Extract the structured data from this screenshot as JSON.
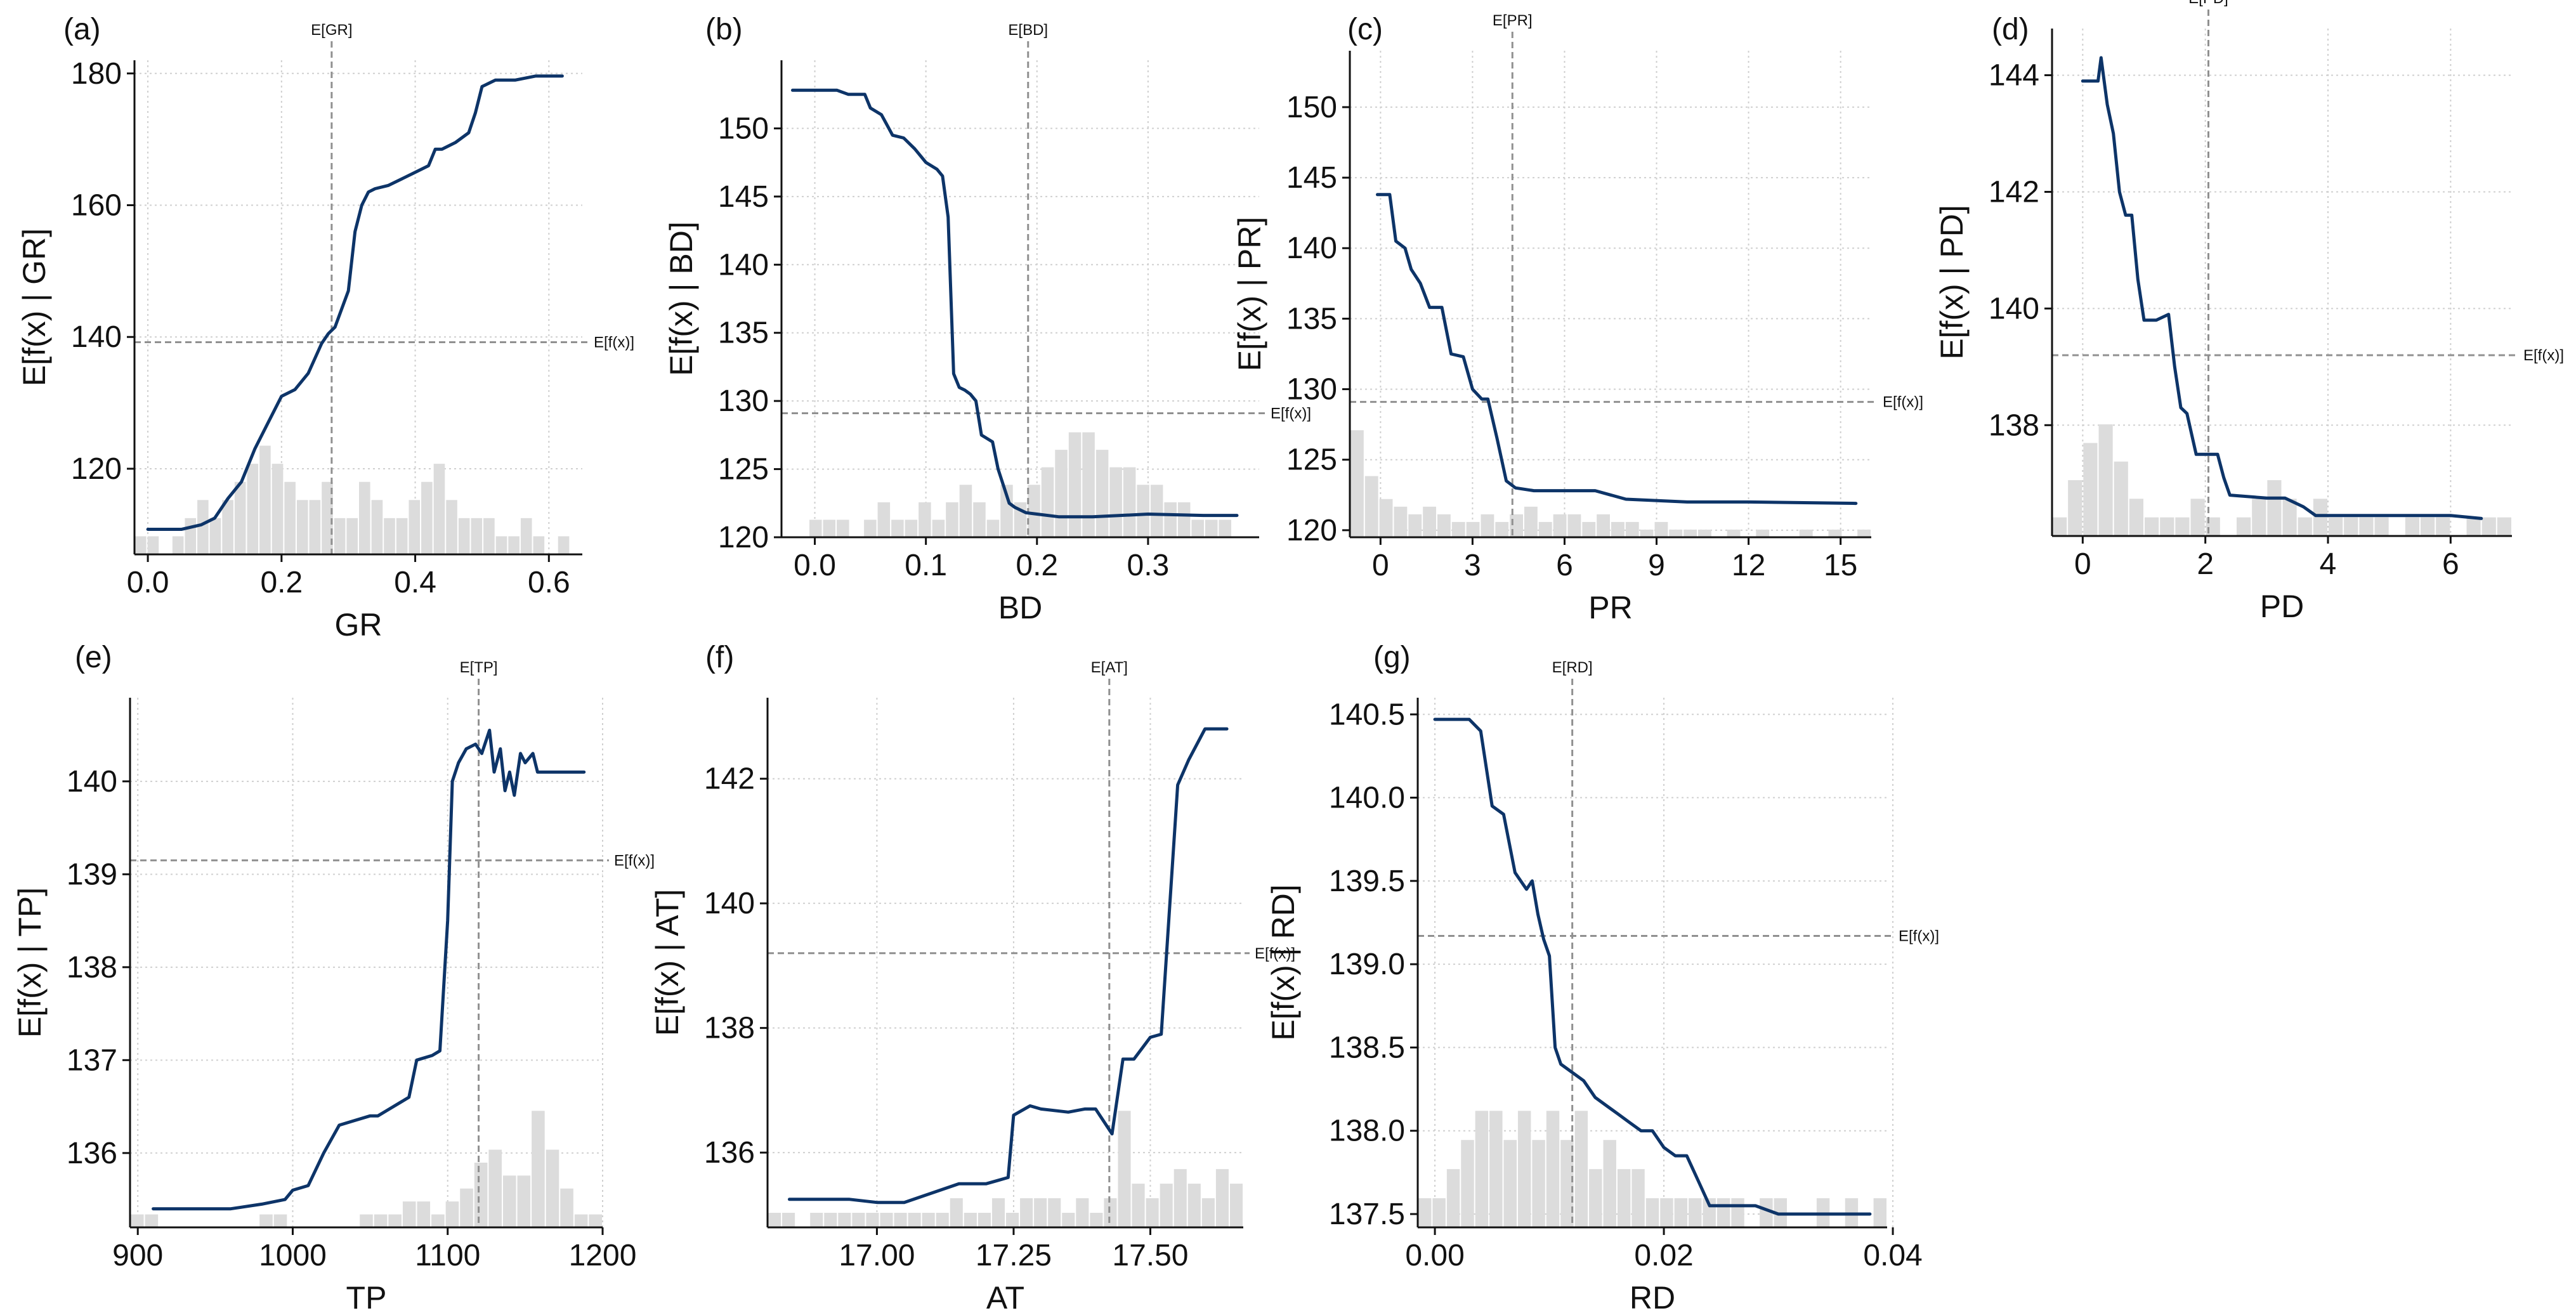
{
  "colors": {
    "line": "#0d3468",
    "hist": "#dcdcdc",
    "grid": "#d0d0d0",
    "ref": "#909090",
    "axis": "#111111",
    "text": "#111111"
  },
  "chart_data": [
    {
      "type": "line",
      "panel": "(a)",
      "feature": "GR",
      "xlabel": "GR",
      "ylabel": "E[f(x) | GR]",
      "xlim": [
        -0.02,
        0.65
      ],
      "ylim": [
        107,
        182
      ],
      "xticks": [
        0.0,
        0.2,
        0.4,
        0.6
      ],
      "xtick_labels": [
        "0.0",
        "0.2",
        "0.4",
        "0.6"
      ],
      "yticks": [
        120,
        140,
        160,
        180
      ],
      "ytick_labels": [
        "120",
        "140",
        "160",
        "180"
      ],
      "expected_x": 0.275,
      "expected_x_label": "E[GR]",
      "expected_y": 139.2,
      "expected_y_label": "E[f(x)]",
      "x": [
        0.0,
        0.05,
        0.08,
        0.1,
        0.12,
        0.14,
        0.16,
        0.18,
        0.2,
        0.22,
        0.24,
        0.26,
        0.27,
        0.28,
        0.3,
        0.31,
        0.32,
        0.33,
        0.34,
        0.36,
        0.38,
        0.4,
        0.42,
        0.43,
        0.44,
        0.46,
        0.48,
        0.49,
        0.5,
        0.52,
        0.55,
        0.58,
        0.62
      ],
      "y": [
        110.8,
        110.8,
        111.5,
        112.5,
        115.5,
        118,
        123,
        127,
        131,
        132,
        134.5,
        139,
        140.5,
        141.5,
        147,
        156,
        160,
        162,
        162.5,
        163,
        164,
        165,
        166,
        168.5,
        168.5,
        169.5,
        171,
        174,
        178,
        179,
        179,
        179.6,
        179.6
      ],
      "hist_counts": [
        1,
        1,
        0,
        1,
        2,
        3,
        2,
        3,
        4,
        5,
        6,
        5,
        4,
        3,
        3,
        4,
        2,
        2,
        4,
        3,
        2,
        2,
        3,
        4,
        5,
        3,
        2,
        2,
        2,
        1,
        1,
        2,
        1,
        0,
        1,
        0
      ]
    },
    {
      "type": "line",
      "panel": "(b)",
      "feature": "BD",
      "xlabel": "BD",
      "ylabel": "E[f(x) | BD]",
      "xlim": [
        -0.03,
        0.4
      ],
      "ylim": [
        120,
        155
      ],
      "xticks": [
        0.0,
        0.1,
        0.2,
        0.3
      ],
      "xtick_labels": [
        "0.0",
        "0.1",
        "0.2",
        "0.3"
      ],
      "yticks": [
        120,
        125,
        130,
        135,
        140,
        145,
        150
      ],
      "ytick_labels": [
        "120",
        "125",
        "130",
        "135",
        "140",
        "145",
        "150"
      ],
      "expected_x": 0.192,
      "expected_x_label": "E[BD]",
      "expected_y": 129.1,
      "expected_y_label": "E[f(x)]",
      "x": [
        -0.02,
        0.02,
        0.03,
        0.045,
        0.05,
        0.06,
        0.07,
        0.08,
        0.09,
        0.1,
        0.11,
        0.115,
        0.12,
        0.125,
        0.13,
        0.135,
        0.14,
        0.145,
        0.15,
        0.16,
        0.165,
        0.175,
        0.18,
        0.19,
        0.2,
        0.22,
        0.25,
        0.3,
        0.35,
        0.38
      ],
      "y": [
        152.8,
        152.8,
        152.5,
        152.5,
        151.5,
        151,
        149.5,
        149.3,
        148.5,
        147.5,
        147,
        146.5,
        143.5,
        132,
        131,
        130.8,
        130.5,
        130,
        127.5,
        127,
        125,
        122.5,
        122.2,
        121.8,
        121.7,
        121.5,
        121.5,
        121.7,
        121.6,
        121.6
      ],
      "hist_counts": [
        0,
        0,
        1,
        1,
        1,
        0,
        1,
        2,
        1,
        1,
        2,
        1,
        2,
        3,
        2,
        1,
        3,
        2,
        3,
        4,
        5,
        6,
        6,
        5,
        4,
        4,
        3,
        3,
        2,
        2,
        1,
        1,
        1,
        0,
        0
      ]
    },
    {
      "type": "line",
      "panel": "(c)",
      "feature": "PR",
      "xlabel": "PR",
      "ylabel": "E[f(x) | PR]",
      "xlim": [
        -1.0,
        16.0
      ],
      "ylim": [
        119.5,
        154
      ],
      "xticks": [
        0,
        3,
        6,
        9,
        12,
        15
      ],
      "xtick_labels": [
        "0",
        "3",
        "6",
        "9",
        "12",
        "15"
      ],
      "yticks": [
        120,
        125,
        130,
        135,
        140,
        145,
        150
      ],
      "ytick_labels": [
        "120",
        "125",
        "130",
        "135",
        "140",
        "145",
        "150"
      ],
      "expected_x": 4.3,
      "expected_x_label": "E[PR]",
      "expected_y": 129.1,
      "expected_y_label": "E[f(x)]",
      "x": [
        -0.1,
        0.3,
        0.5,
        0.8,
        1.0,
        1.3,
        1.6,
        2.0,
        2.3,
        2.7,
        3.0,
        3.3,
        3.5,
        3.8,
        4.1,
        4.4,
        5.0,
        6.0,
        7.0,
        8.0,
        10.0,
        12.0,
        15.5
      ],
      "y": [
        143.8,
        143.8,
        140.5,
        140,
        138.5,
        137.5,
        135.8,
        135.8,
        132.5,
        132.3,
        130,
        129.3,
        129.3,
        126.5,
        123.5,
        123,
        122.8,
        122.8,
        122.8,
        122.2,
        122,
        122,
        121.9
      ],
      "hist_counts": [
        14,
        8,
        5,
        4,
        3,
        4,
        3,
        2,
        2,
        3,
        2,
        3,
        4,
        2,
        3,
        3,
        2,
        3,
        2,
        2,
        1,
        2,
        1,
        1,
        1,
        0,
        1,
        0,
        1,
        0,
        0,
        1,
        0,
        1,
        0,
        1
      ]
    },
    {
      "type": "line",
      "panel": "(d)",
      "feature": "PD",
      "xlabel": "PD",
      "ylabel": "E[f(x) | PD]",
      "xlim": [
        -0.5,
        7.0
      ],
      "ylim": [
        136.1,
        144.8
      ],
      "xticks": [
        0,
        2,
        4,
        6
      ],
      "xtick_labels": [
        "0",
        "2",
        "4",
        "6"
      ],
      "yticks": [
        138,
        140,
        142,
        144
      ],
      "ytick_labels": [
        "138",
        "140",
        "142",
        "144"
      ],
      "expected_x": 2.05,
      "expected_x_label": "E[PD]",
      "expected_y": 139.2,
      "expected_y_label": "E[f(x)]",
      "x": [
        0.0,
        0.25,
        0.3,
        0.4,
        0.5,
        0.6,
        0.7,
        0.8,
        0.9,
        1.0,
        1.2,
        1.4,
        1.5,
        1.6,
        1.7,
        1.85,
        2.0,
        2.2,
        2.3,
        2.4,
        3.0,
        3.3,
        3.6,
        3.8,
        4.0,
        5.0,
        6.0,
        6.5
      ],
      "y": [
        143.9,
        143.9,
        144.3,
        143.5,
        143,
        142,
        141.6,
        141.6,
        140.5,
        139.8,
        139.8,
        139.9,
        139,
        138.3,
        138.2,
        137.5,
        137.5,
        137.5,
        137.1,
        136.8,
        136.75,
        136.75,
        136.6,
        136.45,
        136.45,
        136.45,
        136.45,
        136.4
      ],
      "hist_counts": [
        1,
        3,
        5,
        6,
        4,
        2,
        1,
        1,
        1,
        2,
        1,
        0,
        1,
        2,
        3,
        2,
        1,
        2,
        1,
        1,
        1,
        1,
        0,
        1,
        1,
        1,
        0,
        1,
        1,
        1
      ]
    },
    {
      "type": "line",
      "panel": "(e)",
      "feature": "TP",
      "xlabel": "TP",
      "ylabel": "E[f(x) | TP]",
      "xlim": [
        895,
        1200
      ],
      "ylim": [
        135.2,
        140.9
      ],
      "xticks": [
        900,
        1000,
        1100,
        1200
      ],
      "xtick_labels": [
        "900",
        "1000",
        "1100",
        "1200"
      ],
      "yticks": [
        136,
        137,
        138,
        139,
        140
      ],
      "ytick_labels": [
        "136",
        "137",
        "138",
        "139",
        "140"
      ],
      "expected_x": 1120,
      "expected_x_label": "E[TP]",
      "expected_y": 139.15,
      "expected_y_label": "E[f(x)]",
      "x": [
        910,
        960,
        980,
        995,
        1000,
        1010,
        1020,
        1030,
        1040,
        1050,
        1055,
        1060,
        1070,
        1075,
        1080,
        1090,
        1095,
        1100,
        1103,
        1107,
        1112,
        1118,
        1122,
        1127,
        1130,
        1134,
        1137,
        1140,
        1143,
        1147,
        1150,
        1155,
        1158,
        1162,
        1170,
        1188
      ],
      "y": [
        135.4,
        135.4,
        135.45,
        135.5,
        135.6,
        135.65,
        136,
        136.3,
        136.35,
        136.4,
        136.4,
        136.45,
        136.55,
        136.6,
        137,
        137.05,
        137.1,
        138.5,
        140,
        140.2,
        140.35,
        140.4,
        140.3,
        140.55,
        140.1,
        140.35,
        139.9,
        140.1,
        139.85,
        140.3,
        140.2,
        140.3,
        140.1,
        140.1,
        140.1,
        140.1
      ],
      "hist_counts": [
        1,
        1,
        0,
        0,
        0,
        0,
        0,
        0,
        0,
        1,
        1,
        0,
        0,
        0,
        0,
        0,
        1,
        1,
        1,
        2,
        2,
        1,
        2,
        3,
        5,
        6,
        4,
        4,
        9,
        6,
        3,
        1,
        1
      ]
    },
    {
      "type": "line",
      "panel": "(f)",
      "feature": "AT",
      "xlabel": "AT",
      "ylabel": "E[f(x) | AT]",
      "xlim": [
        16.8,
        17.67
      ],
      "ylim": [
        134.8,
        143.3
      ],
      "xticks": [
        17.0,
        17.25,
        17.5
      ],
      "xtick_labels": [
        "17.00",
        "17.25",
        "17.50"
      ],
      "yticks": [
        136,
        138,
        140,
        142
      ],
      "ytick_labels": [
        "136",
        "138",
        "140",
        "142"
      ],
      "expected_x": 17.425,
      "expected_x_label": "E[AT]",
      "expected_y": 139.2,
      "expected_y_label": "E[f(x)]",
      "x": [
        16.84,
        16.95,
        17.0,
        17.05,
        17.1,
        17.15,
        17.18,
        17.2,
        17.22,
        17.24,
        17.25,
        17.28,
        17.3,
        17.35,
        17.38,
        17.4,
        17.43,
        17.45,
        17.47,
        17.5,
        17.52,
        17.55,
        17.57,
        17.6,
        17.64
      ],
      "y": [
        135.25,
        135.25,
        135.2,
        135.2,
        135.35,
        135.5,
        135.5,
        135.5,
        135.55,
        135.6,
        136.6,
        136.75,
        136.7,
        136.65,
        136.7,
        136.7,
        136.3,
        137.5,
        137.5,
        137.85,
        137.9,
        141.9,
        142.3,
        142.8,
        142.8
      ],
      "hist_counts": [
        1,
        1,
        0,
        1,
        1,
        1,
        1,
        1,
        1,
        1,
        1,
        1,
        1,
        2,
        1,
        1,
        2,
        1,
        2,
        2,
        2,
        1,
        2,
        1,
        2,
        8,
        3,
        2,
        3,
        4,
        3,
        2,
        4,
        3
      ]
    },
    {
      "type": "line",
      "panel": "(g)",
      "feature": "RD",
      "xlabel": "RD",
      "ylabel": "E[f(x) | RD]",
      "xlim": [
        -0.0015,
        0.0395
      ],
      "ylim": [
        137.42,
        140.6
      ],
      "xticks": [
        0.0,
        0.02,
        0.04
      ],
      "xtick_labels": [
        "0.00",
        "0.02",
        "0.04"
      ],
      "yticks": [
        137.5,
        138.0,
        138.5,
        139.0,
        139.5,
        140.0,
        140.5
      ],
      "ytick_labels": [
        "137.5",
        "138.0",
        "138.5",
        "139.0",
        "139.5",
        "140.0",
        "140.5"
      ],
      "expected_x": 0.012,
      "expected_x_label": "E[RD]",
      "expected_y": 139.17,
      "expected_y_label": "E[f(x)]",
      "x": [
        0.0,
        0.003,
        0.004,
        0.005,
        0.006,
        0.007,
        0.008,
        0.0085,
        0.009,
        0.0095,
        0.01,
        0.0105,
        0.011,
        0.012,
        0.013,
        0.014,
        0.015,
        0.016,
        0.017,
        0.018,
        0.019,
        0.02,
        0.021,
        0.022,
        0.023,
        0.024,
        0.025,
        0.026,
        0.028,
        0.03,
        0.035,
        0.038
      ],
      "y": [
        140.47,
        140.47,
        140.4,
        139.95,
        139.9,
        139.55,
        139.45,
        139.5,
        139.3,
        139.15,
        139.05,
        138.5,
        138.4,
        138.35,
        138.3,
        138.2,
        138.15,
        138.1,
        138.05,
        138.0,
        138.0,
        137.9,
        137.85,
        137.85,
        137.7,
        137.55,
        137.55,
        137.55,
        137.55,
        137.5,
        137.5,
        137.5
      ],
      "hist_counts": [
        1,
        1,
        2,
        3,
        4,
        4,
        3,
        4,
        3,
        4,
        3,
        4,
        2,
        3,
        2,
        2,
        1,
        1,
        1,
        1,
        1,
        1,
        1,
        0,
        1,
        1,
        0,
        0,
        1,
        0,
        1,
        0,
        1
      ]
    }
  ]
}
